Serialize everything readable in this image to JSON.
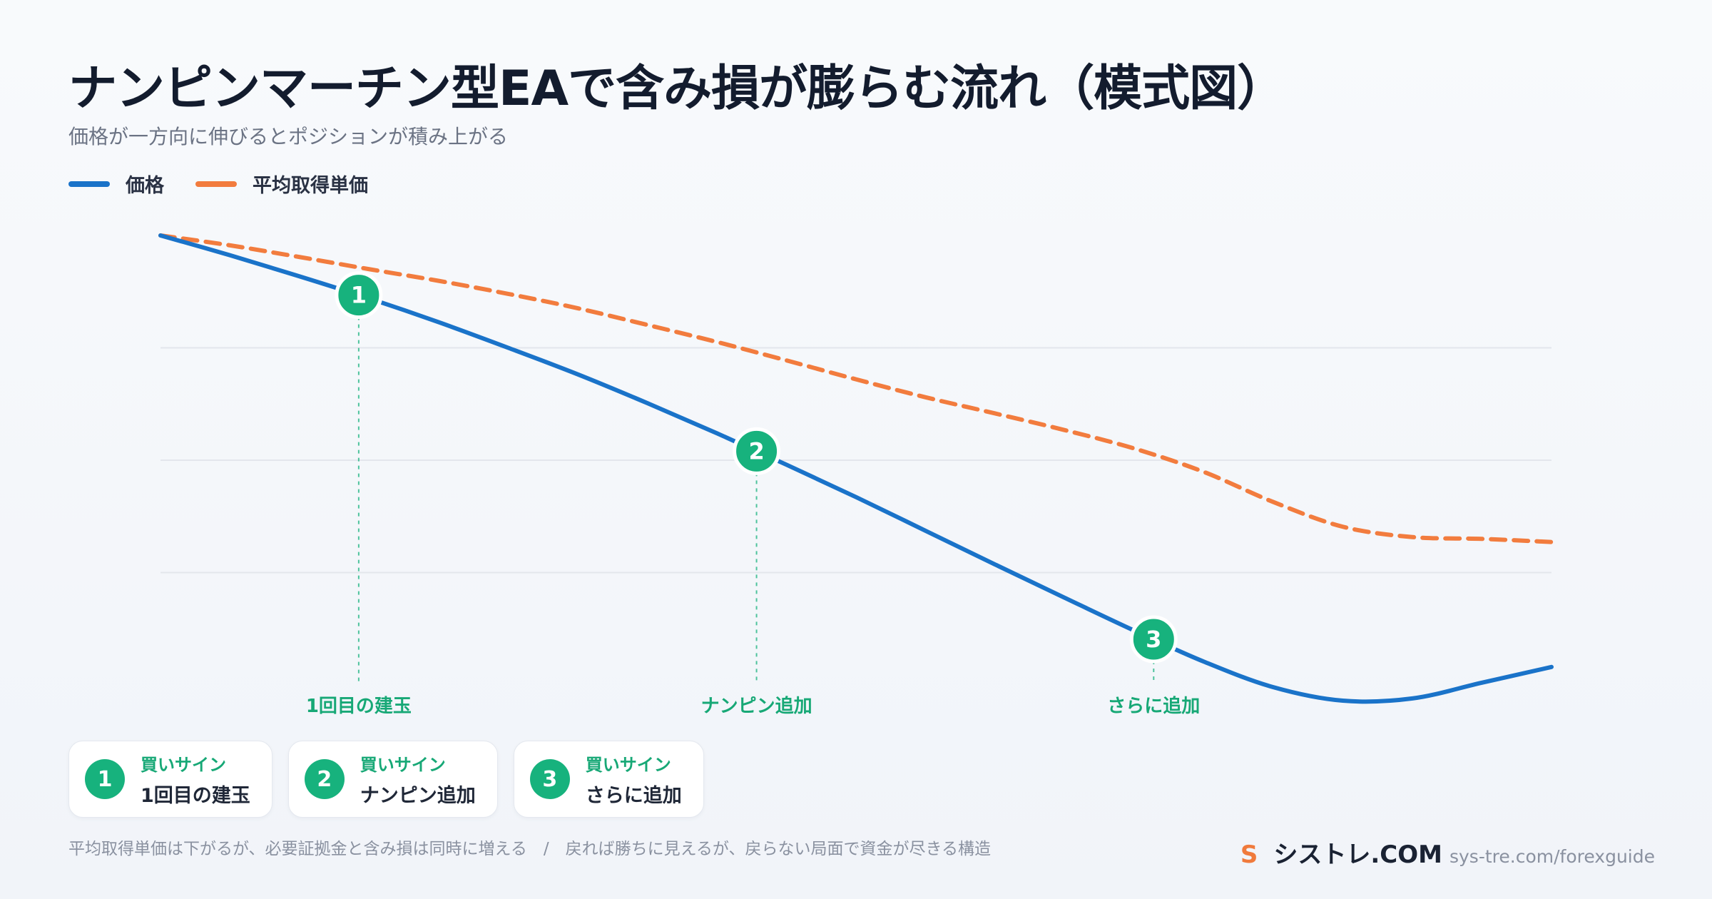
{
  "title": "ナンピンマーチン型EAで含み損が膨らむ流れ（模式図）",
  "subtitle": "価格が一方向に伸びるとポジションが積み上がる",
  "legend": [
    {
      "label": "価格",
      "color": "#1a73c9"
    },
    {
      "label": "平均取得単価",
      "color": "#f27c3e"
    }
  ],
  "colors": {
    "price": "#1a73c9",
    "average": "#f27c3e",
    "marker": "#17b27d",
    "grid": "#e3e6ec"
  },
  "chart_data": {
    "type": "line",
    "x": [
      0,
      1,
      2,
      3,
      4,
      5,
      6,
      7,
      8,
      9,
      10,
      11,
      12,
      13,
      14,
      15,
      16,
      17,
      18,
      19,
      20
    ],
    "xlabel": "",
    "ylabel": "",
    "ylim": [
      0,
      100
    ],
    "grid": true,
    "legend_position": "top-left",
    "series": [
      {
        "name": "価格",
        "style": "solid",
        "color": "#1a73c9",
        "values": [
          100,
          95.6,
          90.9,
          86,
          80.7,
          75,
          69.1,
          62.7,
          56,
          49,
          41.8,
          34.3,
          26.8,
          19.4,
          12.1,
          5.2,
          -0.5,
          -3.5,
          -3,
          0.5,
          4
        ]
      },
      {
        "name": "平均取得単価",
        "style": "dashed",
        "color": "#f27c3e",
        "values": [
          100,
          97.8,
          95.2,
          92.5,
          89.9,
          87,
          83.8,
          80.1,
          76.3,
          72.2,
          68,
          64,
          60.4,
          56.7,
          52.6,
          47.4,
          40.7,
          35.2,
          32.9,
          32.5,
          31.8
        ]
      }
    ],
    "markers": [
      {
        "id": "1",
        "x": 2.85,
        "series": 0,
        "label": "1回目の建玉"
      },
      {
        "id": "2",
        "x": 8.57,
        "series": 0,
        "label": "ナンピン追加"
      },
      {
        "id": "3",
        "x": 14.28,
        "series": 0,
        "label": "さらに追加"
      }
    ]
  },
  "cards": [
    {
      "num": "1",
      "tag": "買いサイン",
      "label": "1回目の建玉"
    },
    {
      "num": "2",
      "tag": "買いサイン",
      "label": "ナンピン追加"
    },
    {
      "num": "3",
      "tag": "買いサイン",
      "label": "さらに追加"
    }
  ],
  "footnote": "平均取得単価は下がるが、必要証拠金と含み損は同時に増える　/　戻れば勝ちに見えるが、戻らない局面で資金が尽きる構造",
  "brand": {
    "logo": "S",
    "name": "シストレ.COM",
    "url": "sys-tre.com/forexguide"
  }
}
